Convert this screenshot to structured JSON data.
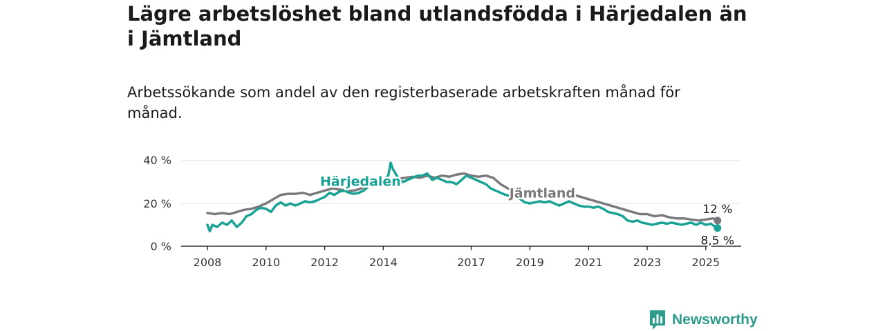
{
  "header": {
    "title": "Lägre arbetslöshet bland utlandsfödda i Härjedalen än i Jämtland",
    "subtitle": "Arbetssökande som andel av den registerbaserade arbetskraften månad för månad."
  },
  "branding": {
    "name": "Newsworthy",
    "icon": "bar-chart-logo-icon"
  },
  "colors": {
    "harjedalen": "#1aa394",
    "jamtland": "#7a7a7e",
    "axis": "#333333",
    "grid": "#e0e0e0"
  },
  "chart_data": {
    "type": "line",
    "title": "Lägre arbetslöshet bland utlandsfödda i Härjedalen än i Jämtland",
    "subtitle": "Arbetssökande som andel av den registerbaserade arbetskraften månad för månad.",
    "xlabel": "",
    "ylabel": "",
    "xlim": [
      2008,
      2025.4
    ],
    "ylim": [
      0,
      40
    ],
    "grid": true,
    "legend": "inline labels",
    "x_ticks": [
      2008,
      2010,
      2012,
      2014,
      2017,
      2019,
      2021,
      2023,
      2025
    ],
    "x_tick_labels": [
      "2008",
      "2010",
      "2012",
      "2014",
      "2017",
      "2019",
      "2021",
      "2023",
      "2025"
    ],
    "y_ticks": [
      0,
      20,
      40
    ],
    "y_tick_labels": [
      "0 %",
      "20 %",
      "40 %"
    ],
    "series": [
      {
        "name": "Jämtland",
        "key": "jamtland",
        "x": [
          2008.0,
          2008.25,
          2008.5,
          2008.75,
          2009.0,
          2009.25,
          2009.5,
          2009.75,
          2010.0,
          2010.25,
          2010.5,
          2010.75,
          2011.0,
          2011.25,
          2011.5,
          2011.75,
          2012.0,
          2012.25,
          2012.5,
          2012.75,
          2013.0,
          2013.25,
          2013.5,
          2013.75,
          2014.0,
          2014.25,
          2014.5,
          2014.75,
          2015.0,
          2015.25,
          2015.5,
          2015.75,
          2016.0,
          2016.25,
          2016.5,
          2016.75,
          2017.0,
          2017.25,
          2017.5,
          2017.75,
          2018.0,
          2018.25,
          2018.5,
          2018.75,
          2019.0,
          2019.25,
          2019.5,
          2019.75,
          2020.0,
          2020.25,
          2020.5,
          2020.75,
          2021.0,
          2021.25,
          2021.5,
          2021.75,
          2022.0,
          2022.25,
          2022.5,
          2022.75,
          2023.0,
          2023.25,
          2023.5,
          2023.75,
          2024.0,
          2024.25,
          2024.5,
          2024.75,
          2025.0,
          2025.25,
          2025.4
        ],
        "values": [
          15.5,
          15,
          15.5,
          15,
          16,
          17,
          17.5,
          18.5,
          20,
          22,
          24,
          24.5,
          24.5,
          25,
          24,
          25,
          26,
          27,
          26.5,
          26,
          26,
          27,
          28.5,
          30,
          30.5,
          31,
          31.5,
          32,
          32.5,
          32,
          33,
          32,
          33,
          32.5,
          33.5,
          34,
          33,
          32.5,
          33,
          32,
          29,
          27,
          25.5,
          24,
          23.5,
          24,
          24.5,
          24.5,
          24,
          23.5,
          24,
          23,
          22,
          21,
          20,
          19,
          18,
          17,
          16,
          15,
          15,
          14,
          14.5,
          13.5,
          13,
          13,
          12.5,
          12,
          12.5,
          13,
          12
        ]
      },
      {
        "name": "Härjedalen",
        "key": "harjedalen",
        "x": [
          2008.0,
          2008.08,
          2008.17,
          2008.33,
          2008.5,
          2008.67,
          2008.83,
          2009.0,
          2009.17,
          2009.33,
          2009.5,
          2009.67,
          2009.83,
          2010.0,
          2010.17,
          2010.33,
          2010.5,
          2010.67,
          2010.83,
          2011.0,
          2011.17,
          2011.33,
          2011.5,
          2011.67,
          2011.83,
          2012.0,
          2012.17,
          2012.33,
          2012.5,
          2012.67,
          2012.83,
          2013.0,
          2013.17,
          2013.33,
          2013.5,
          2013.67,
          2013.83,
          2014.0,
          2014.17,
          2014.25,
          2014.33,
          2014.5,
          2014.67,
          2014.83,
          2015.0,
          2015.17,
          2015.33,
          2015.5,
          2015.67,
          2015.83,
          2016.0,
          2016.17,
          2016.33,
          2016.5,
          2016.67,
          2016.83,
          2017.0,
          2017.17,
          2017.33,
          2017.5,
          2017.67,
          2017.83,
          2018.0,
          2018.17,
          2018.33,
          2018.5,
          2018.67,
          2018.83,
          2019.0,
          2019.17,
          2019.33,
          2019.5,
          2019.67,
          2019.83,
          2020.0,
          2020.17,
          2020.33,
          2020.5,
          2020.67,
          2020.83,
          2021.0,
          2021.17,
          2021.33,
          2021.5,
          2021.67,
          2021.83,
          2022.0,
          2022.17,
          2022.33,
          2022.5,
          2022.67,
          2022.83,
          2023.0,
          2023.17,
          2023.33,
          2023.5,
          2023.67,
          2023.83,
          2024.0,
          2024.17,
          2024.33,
          2024.5,
          2024.67,
          2024.83,
          2025.0,
          2025.17,
          2025.33,
          2025.4
        ],
        "values": [
          10,
          7,
          10,
          9,
          11,
          10,
          12,
          9,
          11,
          14,
          15,
          17,
          18,
          17.5,
          16,
          19,
          20.5,
          19,
          20,
          19,
          20,
          21,
          20.5,
          21,
          22,
          23,
          25,
          24,
          25.5,
          26,
          25,
          24.5,
          25,
          26,
          28,
          29.5,
          30,
          31,
          33,
          39,
          36,
          32,
          30,
          31,
          32,
          33,
          33,
          34,
          31,
          32,
          31,
          30,
          30,
          29,
          31,
          33,
          32,
          31,
          30,
          29,
          27,
          26,
          25,
          24,
          23.5,
          24,
          22,
          20.5,
          20,
          20.5,
          21,
          20.5,
          21,
          20,
          19,
          20,
          21,
          20,
          19,
          18.5,
          18.5,
          18,
          18.5,
          17.5,
          16,
          15.5,
          15,
          14,
          12,
          11.5,
          12,
          11,
          10.5,
          10,
          10.5,
          11,
          10.5,
          11,
          10.5,
          10,
          10.5,
          11,
          10,
          11,
          10,
          10.5,
          9,
          8.5
        ]
      }
    ],
    "annotations": [
      {
        "series": "jamtland",
        "text": "12 %",
        "x": 2025.4,
        "y": 12
      },
      {
        "series": "harjedalen",
        "text": "8,5 %",
        "x": 2025.4,
        "y": 8.5
      }
    ]
  }
}
